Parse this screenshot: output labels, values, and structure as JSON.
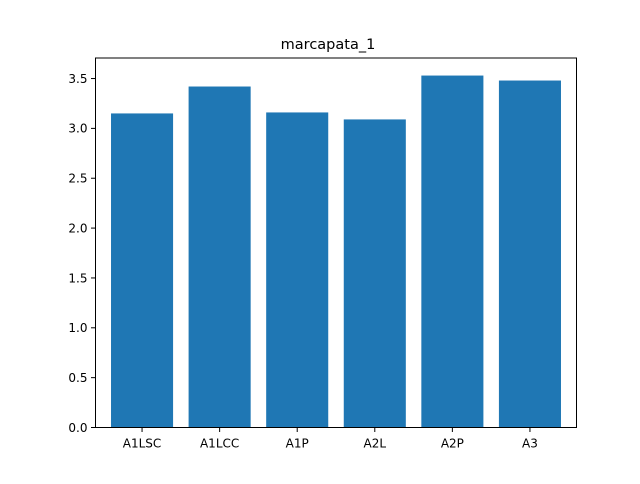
{
  "chart_data": {
    "type": "bar",
    "title": "marcapata_1",
    "xlabel": "",
    "ylabel": "",
    "categories": [
      "A1LSC",
      "A1LCC",
      "A1P",
      "A2L",
      "A2P",
      "A3"
    ],
    "values": [
      3.15,
      3.42,
      3.16,
      3.09,
      3.53,
      3.48
    ],
    "ylim": [
      0,
      3.706
    ],
    "yticks": [
      "0.0",
      "0.5",
      "1.0",
      "1.5",
      "2.0",
      "2.5",
      "3.0",
      "3.5"
    ],
    "grid": false,
    "legend": "none",
    "bar_color": "#1f77b4",
    "axis_color": "#000000"
  }
}
